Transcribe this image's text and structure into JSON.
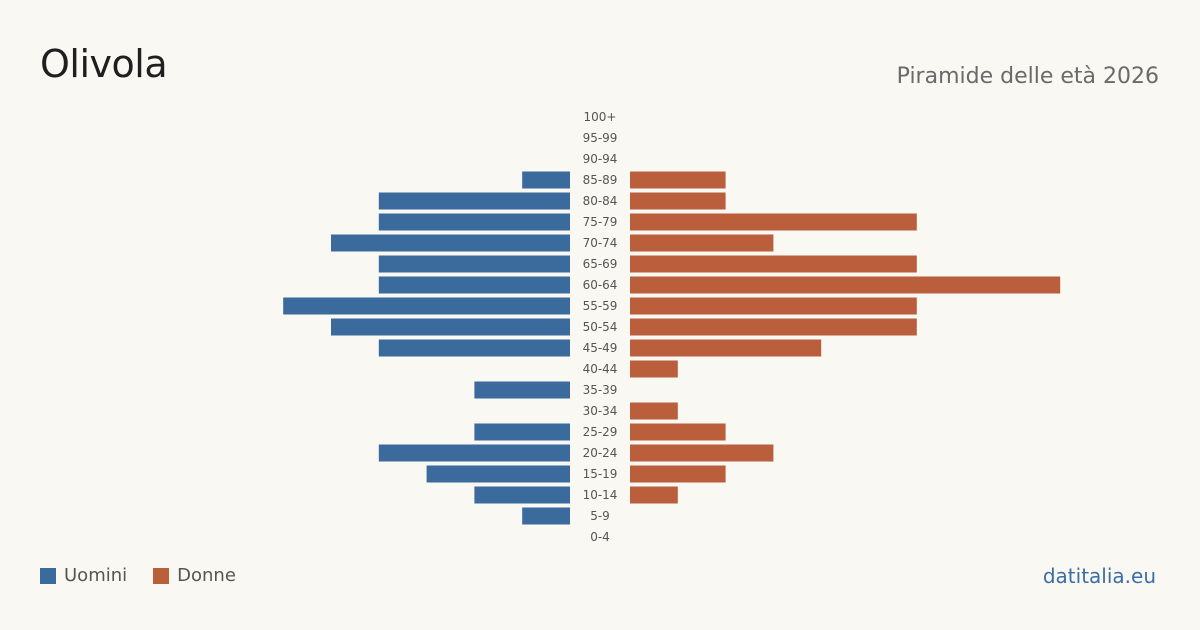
{
  "header": {
    "title": "Olivola",
    "subtitle": "Piramide delle età 2026"
  },
  "legend": {
    "men_label": "Uomini",
    "women_label": "Donne"
  },
  "footer": {
    "brand": "datitalia.eu"
  },
  "colors": {
    "men": "#3b6a9c",
    "women": "#bb5e3c",
    "background": "#faf8f3",
    "label": "#555555"
  },
  "chart_data": {
    "type": "bar",
    "orientation": "horizontal-pyramid",
    "categories": [
      "100+",
      "95-99",
      "90-94",
      "85-89",
      "80-84",
      "75-79",
      "70-74",
      "65-69",
      "60-64",
      "55-59",
      "50-54",
      "45-49",
      "40-44",
      "35-39",
      "30-34",
      "25-29",
      "20-24",
      "15-19",
      "10-14",
      "5-9",
      "0-4"
    ],
    "series": [
      {
        "name": "Uomini",
        "side": "left",
        "values": [
          0,
          0,
          0,
          1,
          4,
          4,
          5,
          4,
          4,
          6,
          5,
          4,
          0,
          2,
          0,
          2,
          4,
          3,
          2,
          1,
          0
        ]
      },
      {
        "name": "Donne",
        "side": "right",
        "values": [
          0,
          0,
          0,
          2,
          2,
          6,
          3,
          6,
          9,
          6,
          6,
          4,
          1,
          0,
          1,
          2,
          3,
          2,
          1,
          0,
          0
        ]
      }
    ],
    "legend": "bottom-left",
    "grid": false
  }
}
